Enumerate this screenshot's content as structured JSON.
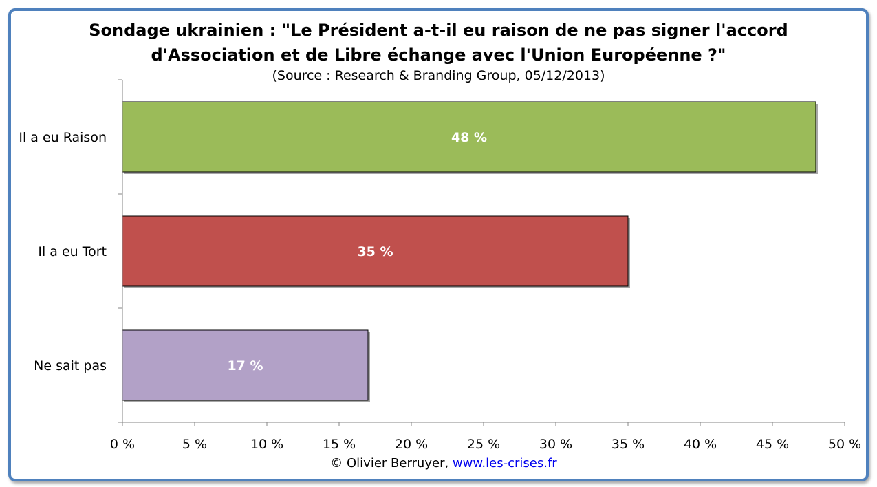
{
  "chart_data": {
    "type": "bar",
    "orientation": "horizontal",
    "title": "Sondage ukrainien : \"Le Président a-t-il eu raison de ne pas signer l'accord",
    "title_line2": "d'Association et de Libre échange avec l'Union Européenne ?\"",
    "subtitle": "(Source : Research & Branding Group, 05/12/2013)",
    "categories": [
      "Il a eu Raison",
      "Il a eu Tort",
      "Ne sait pas"
    ],
    "values": [
      48,
      35,
      17
    ],
    "data_labels": [
      "48 %",
      "35 %",
      "17 %"
    ],
    "colors": [
      "#9bbb59",
      "#c0504d",
      "#b2a1c7"
    ],
    "xlim": [
      0,
      50
    ],
    "xticks": [
      0,
      5,
      10,
      15,
      20,
      25,
      30,
      35,
      40,
      45,
      50
    ],
    "xtick_labels": [
      "0 %",
      "5 %",
      "10 %",
      "15 %",
      "20 %",
      "25 %",
      "30 %",
      "35 %",
      "40 %",
      "45 %",
      "50 %"
    ],
    "grid": false,
    "legend": "none"
  },
  "credit": {
    "text": "© Olivier Berruyer,",
    "link": "www.les-crises.fr"
  },
  "frame_color": "#4f81bd"
}
